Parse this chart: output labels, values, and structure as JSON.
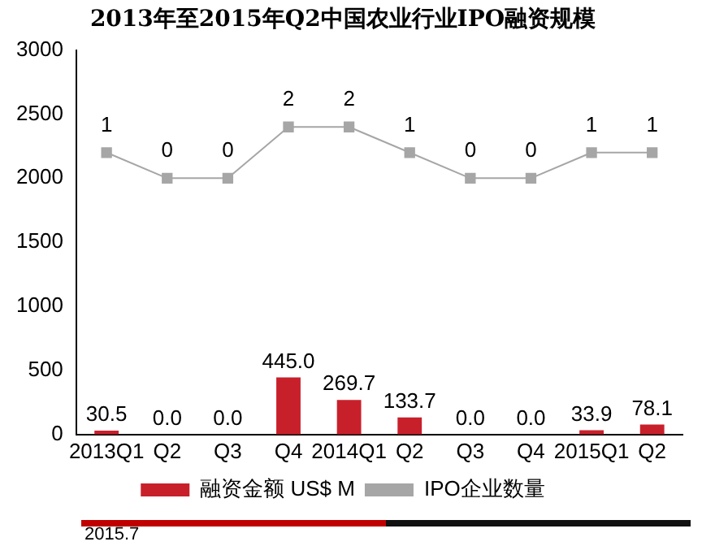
{
  "chart_data": {
    "type": "bar",
    "title": "2013年至2015年Q2中国农业行业IPO融资规模",
    "categories": [
      "2013Q1",
      "Q2",
      "Q3",
      "Q4",
      "2014Q1",
      "Q2",
      "Q3",
      "Q4",
      "2015Q1",
      "Q2"
    ],
    "series": [
      {
        "name": "融资金额 US$ M",
        "color": "#c8202b",
        "values": [
          30.5,
          0.0,
          0.0,
          445.0,
          269.7,
          133.7,
          0.0,
          0.0,
          33.9,
          78.1
        ],
        "value_labels": [
          "30.5",
          "0.0",
          "0.0",
          "445.0",
          "269.7",
          "133.7",
          "0.0",
          "0.0",
          "33.9",
          "78.1"
        ]
      },
      {
        "name": "IPO企业数量",
        "type": "line",
        "axis": "y2",
        "color": "#a6a6a6",
        "marker": "square",
        "values": [
          1,
          0,
          0,
          2,
          2,
          1,
          0,
          0,
          1,
          1
        ],
        "value_labels": [
          "1",
          "0",
          "0",
          "2",
          "2",
          "1",
          "0",
          "0",
          "1",
          "1"
        ]
      }
    ],
    "ylim": [
      0,
      3000
    ],
    "yticks": [
      0,
      500,
      1000,
      1500,
      2000,
      2500,
      3000
    ],
    "y2lim": [
      -10,
      5
    ],
    "grid": false,
    "legend": "bottom",
    "annotations": [
      "2015.7"
    ]
  }
}
